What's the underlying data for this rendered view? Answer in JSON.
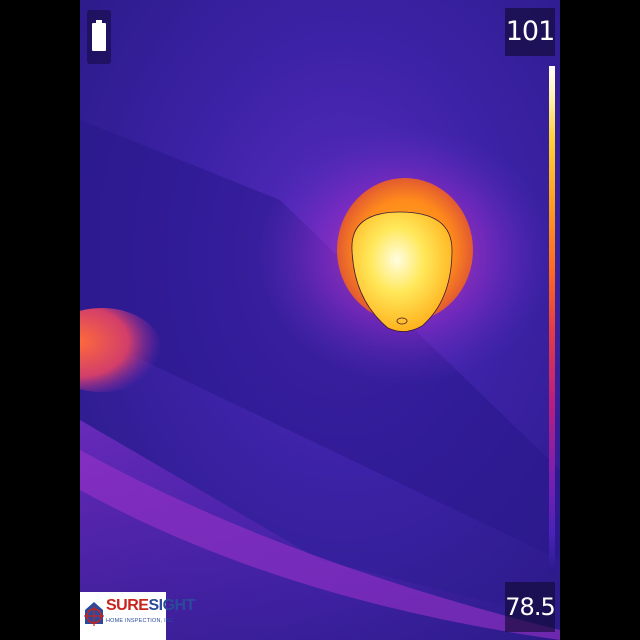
{
  "camera": {
    "temp_max": "101",
    "temp_min": "78.5",
    "battery_icon": "battery-full-icon"
  },
  "palette": {
    "hot": "#ffffff",
    "warm": "#ffd23a",
    "mid": "#ff6a1e",
    "cool": "#7d1fae",
    "cold": "#2a1a8c"
  },
  "logo": {
    "name_part1": "SURE",
    "name_part2": "SIGHT",
    "tagline": "HOME INSPECTION, INC"
  }
}
